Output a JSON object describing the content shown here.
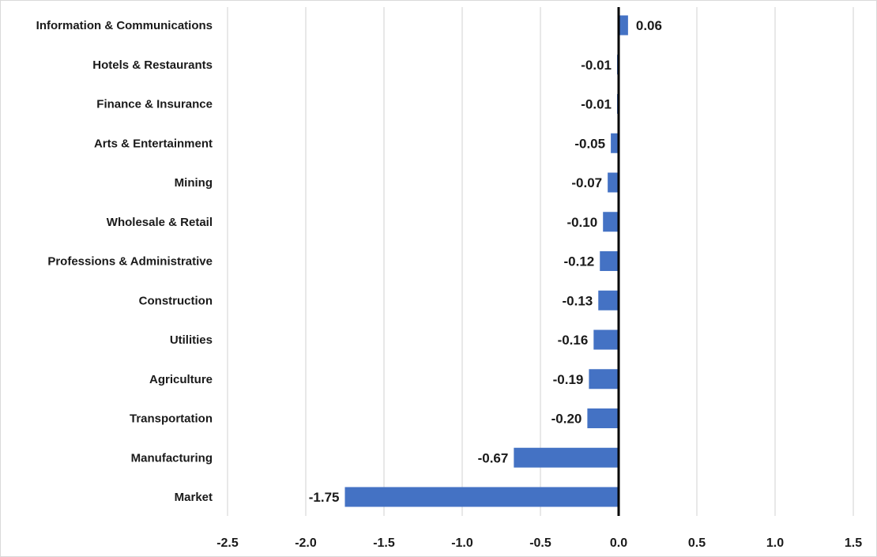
{
  "chart_data": {
    "type": "bar",
    "orientation": "horizontal",
    "categories": [
      "Information & Communications",
      "Hotels & Restaurants",
      "Finance & Insurance",
      "Arts & Entertainment",
      "Mining",
      "Wholesale & Retail",
      "Professions & Administrative",
      "Construction",
      "Utilities",
      "Agriculture",
      "Transportation",
      "Manufacturing",
      "Market"
    ],
    "values": [
      0.06,
      -0.01,
      -0.01,
      -0.05,
      -0.07,
      -0.1,
      -0.12,
      -0.13,
      -0.16,
      -0.19,
      -0.2,
      -0.67,
      -1.75
    ],
    "data_labels": [
      "0.06",
      "-0.01",
      "-0.01",
      "-0.05",
      "-0.07",
      "-0.10",
      "-0.12",
      "-0.13",
      "-0.16",
      "-0.19",
      "-0.20",
      "-0.67",
      "-1.75"
    ],
    "xlim": [
      -2.5,
      1.5
    ],
    "xticks": [
      -2.5,
      -2.0,
      -1.5,
      -1.0,
      -0.5,
      0.0,
      0.5,
      1.0,
      1.5
    ],
    "xtick_labels": [
      "-2.5",
      "-2.0",
      "-1.5",
      "-1.0",
      "-0.5",
      "0.0",
      "0.5",
      "1.0",
      "1.5"
    ],
    "grid": "vertical",
    "legend": "none",
    "colors": {
      "bar": "#4472c4",
      "gridline": "#d9d9d9",
      "zero_axis": "#000000",
      "text": "#1a1a1a"
    }
  }
}
